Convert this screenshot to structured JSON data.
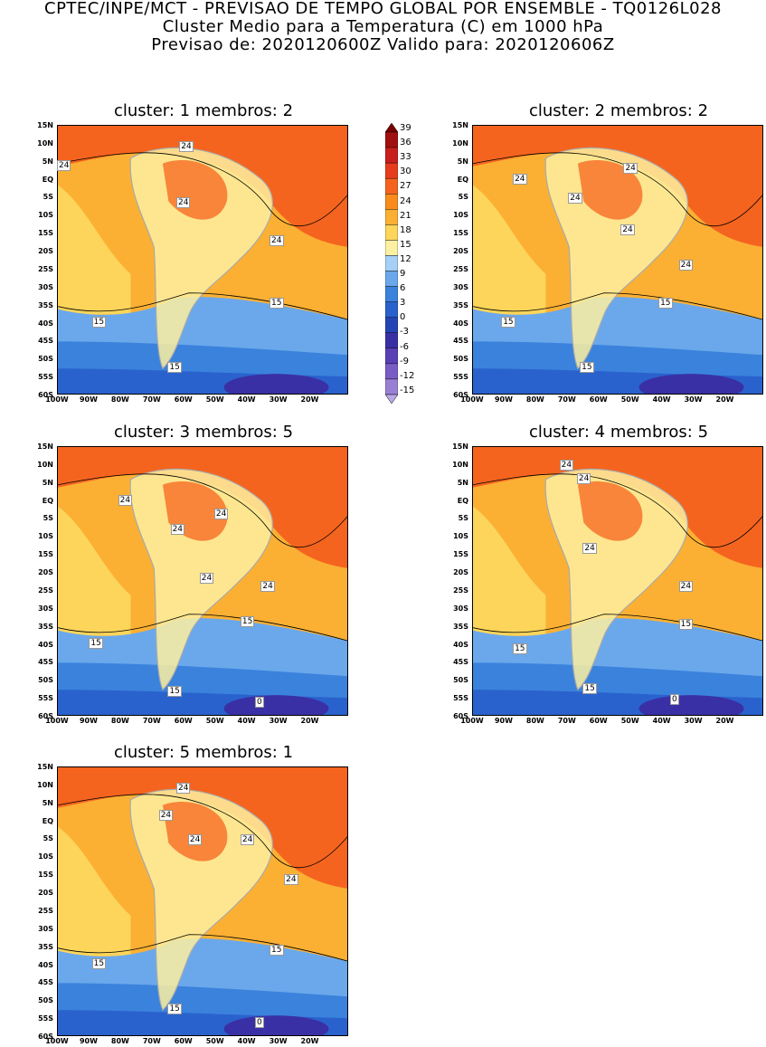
{
  "header": {
    "line1": "CPTEC/INPE/MCT - PREVISAO DE TEMPO GLOBAL POR ENSEMBLE - TQ0126L028",
    "line2": "Cluster Medio para a Temperatura (C) em 1000 hPa",
    "line3": "Previsao de: 2020120600Z   Valido para: 2020120606Z"
  },
  "lat_ticks": [
    "15N",
    "10N",
    "5N",
    "EQ",
    "5S",
    "10S",
    "15S",
    "20S",
    "25S",
    "30S",
    "35S",
    "40S",
    "45S",
    "50S",
    "55S",
    "60S"
  ],
  "lon_ticks": [
    "100W",
    "90W",
    "80W",
    "70W",
    "60W",
    "50W",
    "40W",
    "30W",
    "20W"
  ],
  "colorbar": {
    "levels": [
      "39",
      "36",
      "33",
      "30",
      "27",
      "24",
      "21",
      "18",
      "15",
      "12",
      "9",
      "6",
      "3",
      "0",
      "-3",
      "-6",
      "-9",
      "-12",
      "-15"
    ],
    "colors": [
      "#7a0000",
      "#a01010",
      "#c81e1e",
      "#e63c1e",
      "#f5641e",
      "#fa8c1e",
      "#fbb034",
      "#fcd55a",
      "#fdf0a0",
      "#a6d0f5",
      "#6aa8eb",
      "#3b82dc",
      "#2a62cd",
      "#2545b5",
      "#3a30a5",
      "#5a40b5",
      "#7a5cc5",
      "#9a80d5",
      "#bca8e5"
    ]
  },
  "panels": [
    {
      "title": "cluster: 1   membros: 2",
      "labels": [
        "24",
        "24",
        "24",
        "24",
        "15",
        "15",
        "15"
      ]
    },
    {
      "title": "cluster: 2   membros: 2",
      "labels": [
        "24",
        "24",
        "24",
        "24",
        "24",
        "15",
        "15",
        "15"
      ]
    },
    {
      "title": "cluster: 3   membros: 5",
      "labels": [
        "24",
        "24",
        "24",
        "24",
        "24",
        "15",
        "15",
        "15",
        "0"
      ]
    },
    {
      "title": "cluster: 4   membros: 5",
      "labels": [
        "24",
        "24",
        "24",
        "24",
        "15",
        "15",
        "15",
        "0"
      ]
    },
    {
      "title": "cluster: 5   membros: 1",
      "labels": [
        "24",
        "24",
        "24",
        "24",
        "24",
        "15",
        "15",
        "15",
        "0"
      ]
    }
  ]
}
